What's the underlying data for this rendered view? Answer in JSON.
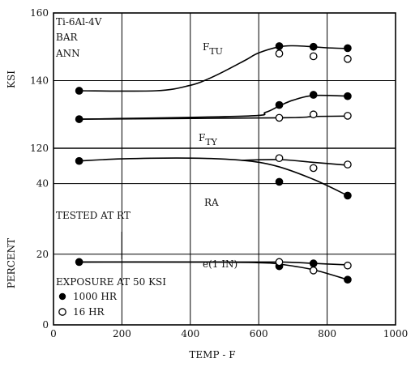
{
  "chart_data": {
    "type": "line",
    "xlabel": "TEMP - F",
    "xlim": [
      0,
      1000
    ],
    "x_ticks": [
      "0",
      "200",
      "400",
      "600",
      "800",
      "1000"
    ],
    "grid": true,
    "annotations": {
      "material": [
        "Ti-6Al-4V",
        "BAR",
        "ANN"
      ],
      "tested": "TESTED AT RT",
      "exposure": "EXPOSURE AT 50 KSI"
    },
    "legend": {
      "placement": "bottom-left",
      "entries": [
        {
          "marker": "filled-circle",
          "label": "1000 HR"
        },
        {
          "marker": "open-circle",
          "label": "16 HR"
        }
      ]
    },
    "panels": [
      {
        "id": "strength",
        "ylabel": "KSI",
        "ylim": [
          120,
          160
        ],
        "y_ticks": [
          "120",
          "140",
          "160"
        ],
        "series": [
          {
            "name": "F",
            "sub": "TU",
            "curve_x": [
              75,
              300,
              400,
              450,
              500,
              560,
              600,
              660,
              700,
              760,
              800,
              860
            ],
            "curve_y": [
              137,
              137,
              138.6,
              140.4,
              142.8,
              146,
              148.2,
              150,
              150.3,
              150,
              149.7,
              149.5
            ],
            "points": [
              {
                "x": 75,
                "y": 137,
                "marker": "filled-circle"
              },
              {
                "x": 660,
                "y": 150.2,
                "marker": "filled-circle"
              },
              {
                "x": 660,
                "y": 148,
                "marker": "open-circle"
              },
              {
                "x": 760,
                "y": 150,
                "marker": "filled-circle"
              },
              {
                "x": 760,
                "y": 147.2,
                "marker": "open-circle"
              },
              {
                "x": 860,
                "y": 149.6,
                "marker": "filled-circle"
              },
              {
                "x": 860,
                "y": 146.4,
                "marker": "open-circle"
              }
            ]
          },
          {
            "name": "F",
            "sub": "TY",
            "curve_x": [
              75,
              560,
              620,
              660,
              700,
              760,
              860
            ],
            "curve_y": [
              128.6,
              129.5,
              130.6,
              132.5,
              134.2,
              135.6,
              135.4
            ],
            "curve2_x": [
              75,
              660,
              760,
              860
            ],
            "curve2_y": [
              128.6,
              129,
              129.4,
              129.5
            ],
            "points": [
              {
                "x": 75,
                "y": 128.6,
                "marker": "filled-circle"
              },
              {
                "x": 660,
                "y": 132.8,
                "marker": "filled-circle"
              },
              {
                "x": 660,
                "y": 129,
                "marker": "open-circle"
              },
              {
                "x": 760,
                "y": 135.8,
                "marker": "filled-circle"
              },
              {
                "x": 760,
                "y": 130,
                "marker": "open-circle"
              },
              {
                "x": 860,
                "y": 135.4,
                "marker": "filled-circle"
              },
              {
                "x": 860,
                "y": 129.6,
                "marker": "open-circle"
              }
            ]
          }
        ]
      },
      {
        "id": "ductility",
        "ylabel": "PERCENT",
        "ylim": [
          0,
          50
        ],
        "y_ticks": [
          "0",
          "20",
          "40"
        ],
        "series": [
          {
            "name": "RA",
            "curve_x": [
              75,
              200,
              400,
              550,
              650,
              760,
              860
            ],
            "curve_y": [
              46.4,
              47,
              47.2,
              46.6,
              45,
              41.2,
              36.6
            ],
            "curve2_x": [
              550,
              660,
              760,
              860
            ],
            "curve2_y": [
              46.6,
              46.8,
              46,
              45.2
            ],
            "points": [
              {
                "x": 75,
                "y": 46.4,
                "marker": "filled-circle"
              },
              {
                "x": 660,
                "y": 40.5,
                "marker": "filled-circle"
              },
              {
                "x": 660,
                "y": 47.2,
                "marker": "open-circle"
              },
              {
                "x": 760,
                "y": 44.4,
                "marker": "open-circle"
              },
              {
                "x": 860,
                "y": 36.6,
                "marker": "filled-circle"
              },
              {
                "x": 860,
                "y": 45.4,
                "marker": "open-circle"
              }
            ]
          },
          {
            "name": "e(1 IN)",
            "curve_x": [
              75,
              400,
              600,
              660,
              760,
              860
            ],
            "curve_y": [
              17.8,
              17.8,
              17.6,
              17.2,
              15.6,
              12.8
            ],
            "curve2_x": [
              75,
              400,
              660,
              760,
              860
            ],
            "curve2_y": [
              17.8,
              17.8,
              17.8,
              17.4,
              17
            ],
            "points": [
              {
                "x": 75,
                "y": 17.8,
                "marker": "filled-circle"
              },
              {
                "x": 660,
                "y": 16.6,
                "marker": "filled-circle"
              },
              {
                "x": 660,
                "y": 17.8,
                "marker": "open-circle"
              },
              {
                "x": 760,
                "y": 17.4,
                "marker": "filled-circle"
              },
              {
                "x": 760,
                "y": 15.4,
                "marker": "open-circle"
              },
              {
                "x": 860,
                "y": 12.8,
                "marker": "filled-circle"
              },
              {
                "x": 860,
                "y": 16.8,
                "marker": "open-circle"
              }
            ]
          }
        ]
      }
    ]
  }
}
